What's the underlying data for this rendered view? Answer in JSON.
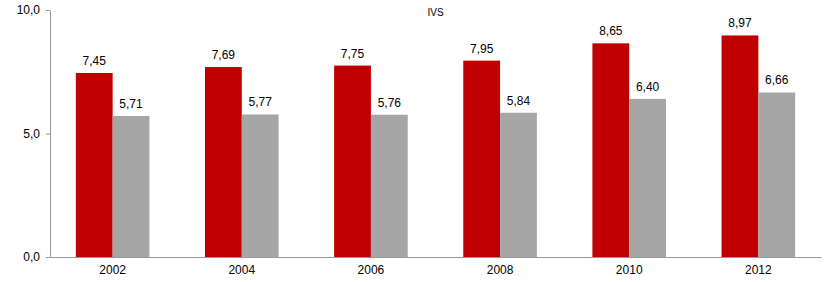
{
  "chart_data": {
    "type": "bar",
    "title": "IVS",
    "categories": [
      "2002",
      "2004",
      "2006",
      "2008",
      "2010",
      "2012"
    ],
    "series": [
      {
        "color": "#c00000",
        "values": [
          7.45,
          7.69,
          7.75,
          7.95,
          8.65,
          8.97
        ],
        "value_labels": [
          "7,45",
          "7,69",
          "7,75",
          "7,95",
          "8,65",
          "8,97"
        ]
      },
      {
        "color": "#a6a6a6",
        "values": [
          5.71,
          5.77,
          5.76,
          5.84,
          6.4,
          6.66
        ],
        "value_labels": [
          "5,71",
          "5,77",
          "5,76",
          "5,84",
          "6,40",
          "6,66"
        ]
      }
    ],
    "ylim": [
      0,
      10
    ],
    "yticks": [
      {
        "value": 0,
        "label": "0,0"
      },
      {
        "value": 5,
        "label": "5,0"
      },
      {
        "value": 10,
        "label": "10,0"
      }
    ],
    "data_labels": true
  }
}
